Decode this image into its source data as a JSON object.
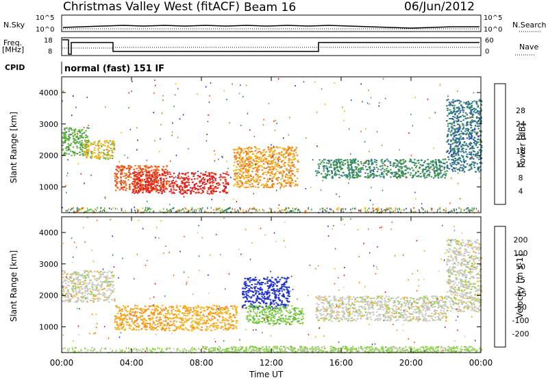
{
  "header": {
    "title": "Christmas Valley West (fitACF)",
    "beam": "Beam 16",
    "date": "06/Jun/2012"
  },
  "top_panels": {
    "nsky_label": "N.Sky",
    "nsearch_label": "N.Search",
    "noise_ticks": [
      "10^5",
      "10^0"
    ],
    "freq_label_1": "Freq.",
    "freq_label_2": "[MHz]",
    "freq_ticks": [
      "18",
      "8"
    ],
    "nave_label": "Nave",
    "nave_ticks": [
      "60",
      "0"
    ],
    "cpid_label": "CPID",
    "cpid_text": "normal (fast) 151 IF"
  },
  "colorbars": {
    "power": {
      "label": "Power [dB]",
      "ticks": [
        "4",
        "8",
        "12",
        "16",
        "20",
        "24",
        "28"
      ],
      "colors": [
        "#0a1de0",
        "#2a4fb0",
        "#2f7a7a",
        "#3f9a4a",
        "#6ab33a",
        "#f2b41a",
        "#f07a1c",
        "#ee4a1a",
        "#e21b1b"
      ]
    },
    "velocity": {
      "label": "Velocity [m s-1]",
      "ticks": [
        "200",
        "100",
        "50",
        "15",
        "-15",
        "-50",
        "-100",
        "-200"
      ],
      "colors": [
        "#1e2fd0",
        "#2b7f5a",
        "#58b43c",
        "#8ed14a",
        "#c8c8c0",
        "#f5b41f",
        "#f28a1c",
        "#ee5a1a",
        "#e01a1a"
      ]
    }
  },
  "axes": {
    "ylabel": "Slant Range [km]",
    "xlabel": "Time UT",
    "y_ticks": [
      "1000",
      "2000",
      "3000",
      "4000"
    ],
    "x_ticks": [
      "00:00",
      "04:00",
      "08:00",
      "12:00",
      "16:00",
      "20:00",
      "00:00"
    ]
  },
  "chart_data": [
    {
      "type": "heatmap",
      "quantity": "Power [dB]",
      "ylabel": "Slant Range [km]",
      "x_range_hours": [
        0,
        24
      ],
      "ylim": [
        180,
        4500
      ],
      "clim": [
        0,
        30
      ],
      "regions": [
        {
          "t": [
            0.0,
            1.5
          ],
          "r": [
            2000,
            2900
          ],
          "value": 14
        },
        {
          "t": [
            1.2,
            3.0
          ],
          "r": [
            1900,
            2500
          ],
          "value": 18
        },
        {
          "t": [
            3.0,
            6.0
          ],
          "r": [
            900,
            1700
          ],
          "value": 24
        },
        {
          "t": [
            4.0,
            9.5
          ],
          "r": [
            800,
            1500
          ],
          "value": 28
        },
        {
          "t": [
            9.8,
            13.5
          ],
          "r": [
            1000,
            2300
          ],
          "value": 20
        },
        {
          "t": [
            14.5,
            22.0
          ],
          "r": [
            1300,
            1900
          ],
          "value": 10
        },
        {
          "t": [
            22.0,
            24.0
          ],
          "r": [
            1500,
            3800
          ],
          "value": 8
        }
      ]
    },
    {
      "type": "heatmap",
      "quantity": "Velocity [m s-1]",
      "ylabel": "Slant Range [km]",
      "x_range_hours": [
        0,
        24
      ],
      "ylim": [
        180,
        4500
      ],
      "clim": [
        -200,
        200
      ],
      "regions": [
        {
          "t": [
            0.0,
            3.0
          ],
          "r": [
            1800,
            2800
          ],
          "value": 0
        },
        {
          "t": [
            3.0,
            6.0
          ],
          "r": [
            900,
            1700
          ],
          "value": -60
        },
        {
          "t": [
            6.0,
            10.0
          ],
          "r": [
            900,
            1700
          ],
          "value": -50
        },
        {
          "t": [
            10.3,
            13.0
          ],
          "r": [
            1600,
            2600
          ],
          "value": 200
        },
        {
          "t": [
            10.5,
            13.8
          ],
          "r": [
            1100,
            1700
          ],
          "value": 60
        },
        {
          "t": [
            14.5,
            22.0
          ],
          "r": [
            1200,
            2000
          ],
          "value": 0
        },
        {
          "t": [
            22.0,
            24.0
          ],
          "r": [
            1500,
            3800
          ],
          "value": 0
        },
        {
          "t": [
            8.0,
            24.0
          ],
          "r": [
            200,
            400
          ],
          "value": 40
        }
      ]
    }
  ]
}
